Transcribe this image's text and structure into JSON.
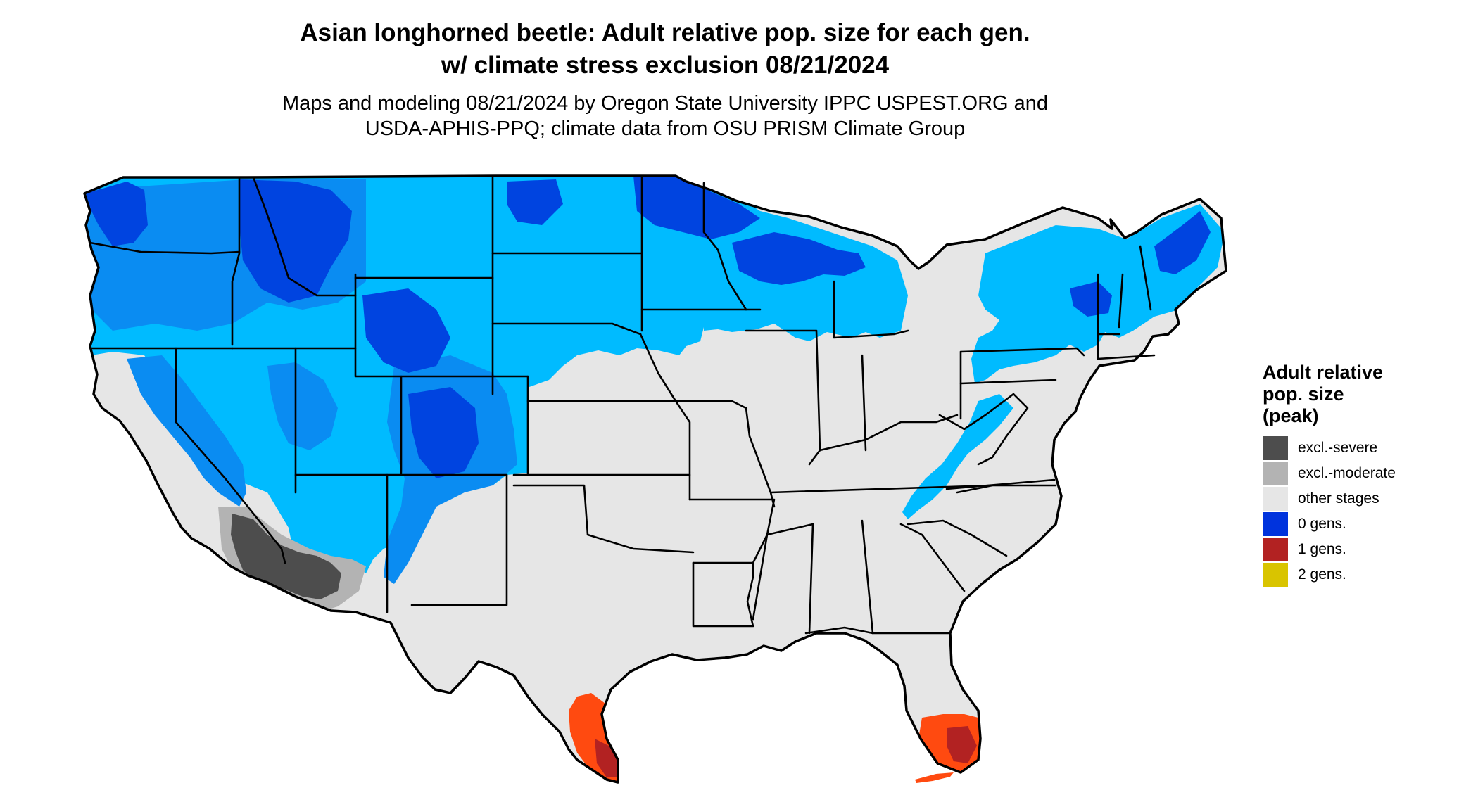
{
  "header": {
    "title_line1": "Asian longhorned beetle: Adult relative pop. size for each gen.",
    "title_line2": "w/ climate stress exclusion 08/21/2024",
    "subtitle_line1": "Maps and modeling 08/21/2024 by Oregon State University IPPC USPEST.ORG and",
    "subtitle_line2": "USDA-APHIS-PPQ; climate data from OSU PRISM Climate Group"
  },
  "legend": {
    "title_line1": "Adult relative",
    "title_line2": "pop. size",
    "title_line3": "(peak)",
    "items": [
      {
        "label": "excl.-severe",
        "color": "#4d4d4d"
      },
      {
        "label": "excl.-moderate",
        "color": "#b3b3b3"
      },
      {
        "label": "other stages",
        "color": "#e6e6e6"
      },
      {
        "label": "0 gens.",
        "color": "#0033dd"
      },
      {
        "label": "1 gens.",
        "color": "#b22222"
      },
      {
        "label": "2 gens.",
        "color": "#d9c400"
      }
    ]
  },
  "map": {
    "colors": {
      "zero_gens_dark": "#0044e0",
      "zero_gens_mid": "#0a8cf2",
      "zero_gens_light": "#00bbff",
      "other_stages": "#e6e6e6",
      "excl_severe": "#4d4d4d",
      "excl_moderate": "#b3b3b3",
      "one_gen_orange": "#ff4a10",
      "one_gen_red": "#b22222",
      "state_border": "#000000"
    }
  }
}
